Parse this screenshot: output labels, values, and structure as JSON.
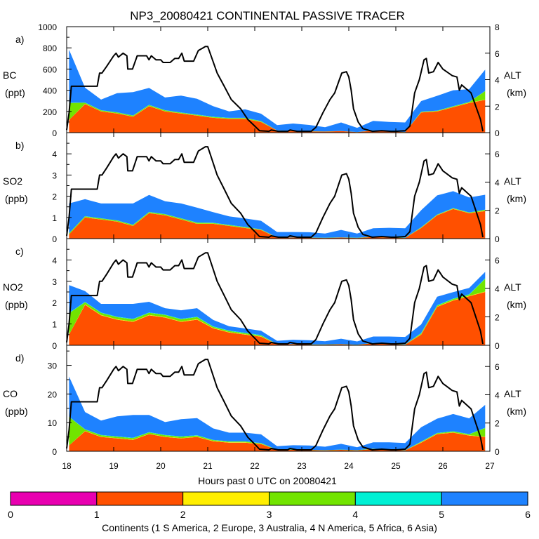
{
  "chart_data": {
    "type": "area",
    "title": "NP3_20080421 CONTINENTAL PASSIVE TRACER",
    "xlabel": "Hours past 0 UTC on 20080421",
    "xlim": [
      18,
      27
    ],
    "xticks": [
      18,
      19,
      20,
      21,
      22,
      23,
      24,
      25,
      26,
      27
    ],
    "altitude_axis": {
      "label": "ALT",
      "unit": "(km)"
    },
    "altitude_km": {
      "x": [
        18.0,
        18.05,
        18.1,
        18.25,
        18.3,
        18.65,
        18.7,
        18.75,
        18.85,
        19.0,
        19.05,
        19.1,
        19.2,
        19.28,
        19.3,
        19.4,
        19.5,
        19.7,
        19.75,
        19.8,
        19.9,
        20.0,
        20.05,
        20.1,
        20.2,
        20.3,
        20.38,
        20.45,
        20.5,
        20.6,
        20.7,
        20.8,
        20.9,
        20.95,
        21.0,
        21.05,
        21.2,
        21.35,
        21.5,
        21.7,
        21.85,
        22.0,
        22.1,
        22.3,
        22.35,
        22.5,
        22.7,
        22.75,
        22.9,
        23.0,
        23.2,
        23.3,
        23.45,
        23.6,
        23.7,
        23.8,
        23.85,
        23.95,
        24.0,
        24.05,
        24.1,
        24.2,
        24.3,
        24.5,
        24.7,
        24.9,
        25.0,
        25.2,
        25.3,
        25.4,
        25.5,
        25.6,
        25.65,
        25.7,
        25.8,
        25.9,
        26.0,
        26.2,
        26.3,
        26.35,
        26.4,
        26.6,
        26.8,
        26.85
      ],
      "y": [
        0.2,
        1.5,
        3.5,
        3.5,
        3.5,
        3.5,
        4.5,
        4.5,
        5.0,
        5.8,
        6.0,
        5.7,
        6.0,
        5.8,
        4.8,
        4.8,
        5.8,
        5.8,
        5.5,
        5.8,
        5.5,
        5.5,
        5.3,
        5.3,
        5.3,
        5.6,
        5.6,
        6.0,
        5.4,
        5.4,
        5.4,
        6.2,
        6.4,
        6.5,
        6.5,
        6.0,
        4.5,
        3.5,
        2.5,
        1.8,
        1.0,
        0.5,
        0.15,
        0.1,
        0.2,
        0.1,
        0.1,
        0.2,
        0.1,
        0.1,
        0.1,
        0.4,
        1.5,
        2.5,
        3.0,
        4.0,
        4.5,
        4.6,
        4.2,
        3.2,
        1.8,
        0.8,
        0.3,
        0.1,
        0.15,
        0.1,
        0.1,
        0.15,
        0.5,
        3.0,
        4.0,
        5.5,
        5.6,
        4.5,
        4.6,
        5.3,
        4.8,
        4.3,
        4.2,
        3.2,
        3.6,
        3.0,
        1.0,
        0.1
      ]
    },
    "legend": {
      "label": "Continents (1 S America, 2 Europe, 3 Australia, 4 N America, 5 Africa, 6 Asia)",
      "tick_labels": [
        "0",
        "1",
        "2",
        "3",
        "4",
        "5",
        "6"
      ],
      "colors": [
        "#e800b0",
        "#ff5000",
        "#ffee00",
        "#72e400",
        "#00f0d4",
        "#1e82ff"
      ]
    },
    "panels": [
      {
        "letter": "a)",
        "species": "BC",
        "unit": "(ppt)",
        "ylim": [
          0,
          1000
        ],
        "yticks": [
          "0",
          "200",
          "400",
          "600",
          "800",
          "1000"
        ],
        "altlim": [
          0,
          8
        ],
        "altticks": [
          "0",
          "2",
          "4",
          "6",
          "8"
        ],
        "series": [
          {
            "name": "S America",
            "color": "#e800b0",
            "values": [
              0,
              0,
              0,
              0,
              0,
              0,
              0,
              0,
              0,
              0,
              0,
              0,
              0,
              0,
              0,
              0,
              0,
              0,
              0,
              0,
              0,
              0,
              0,
              0,
              0,
              0,
              0
            ]
          },
          {
            "name": "Europe",
            "color": "#ff5000",
            "values": [
              120,
              270,
              200,
              180,
              150,
              250,
              200,
              180,
              160,
              140,
              130,
              130,
              100,
              20,
              15,
              12,
              10,
              15,
              5,
              20,
              10,
              5,
              190,
              200,
              240,
              280,
              310
            ]
          },
          {
            "name": "Australia",
            "color": "#ffee00",
            "values": [
              0,
              2,
              2,
              2,
              2,
              2,
              2,
              2,
              2,
              2,
              2,
              2,
              2,
              0,
              0,
              0,
              0,
              0,
              0,
              0,
              0,
              0,
              2,
              2,
              2,
              2,
              2
            ]
          },
          {
            "name": "N America",
            "color": "#72e400",
            "values": [
              160,
              10,
              8,
              8,
              8,
              8,
              8,
              6,
              6,
              6,
              6,
              6,
              5,
              1,
              1,
              1,
              1,
              1,
              1,
              1,
              1,
              1,
              4,
              4,
              6,
              6,
              80
            ]
          },
          {
            "name": "Africa",
            "color": "#00f0d4",
            "values": [
              2,
              2,
              2,
              2,
              2,
              2,
              2,
              2,
              2,
              2,
              2,
              2,
              2,
              0,
              0,
              0,
              0,
              0,
              0,
              0,
              0,
              0,
              2,
              2,
              2,
              2,
              2
            ]
          },
          {
            "name": "Asia",
            "color": "#1e82ff",
            "values": [
              500,
              140,
              100,
              180,
              220,
              160,
              120,
              160,
              150,
              100,
              60,
              80,
              70,
              50,
              70,
              60,
              40,
              80,
              40,
              90,
              90,
              90,
              100,
              140,
              150,
              120,
              200
            ]
          }
        ]
      },
      {
        "letter": "b)",
        "species": "SO2",
        "unit": "(ppb)",
        "ylim": [
          0,
          5
        ],
        "yticks": [
          "0",
          "1",
          "2",
          "3",
          "4"
        ],
        "altlim": [
          0,
          7.5
        ],
        "altticks": [
          "0",
          "2",
          "4",
          "6"
        ],
        "series": [
          {
            "name": "S America",
            "color": "#e800b0",
            "values": [
              0,
              0,
              0,
              0,
              0,
              0,
              0,
              0,
              0,
              0,
              0,
              0,
              0,
              0,
              0,
              0,
              0,
              0,
              0,
              0,
              0,
              0,
              0,
              0,
              0,
              0,
              0
            ]
          },
          {
            "name": "Europe",
            "color": "#ff5000",
            "values": [
              0.2,
              1.0,
              0.9,
              0.8,
              0.6,
              1.2,
              1.1,
              0.9,
              0.7,
              0.7,
              0.6,
              0.5,
              0.4,
              0.05,
              0.05,
              0.04,
              0.03,
              0.05,
              0.03,
              0.08,
              0.05,
              0.03,
              0.5,
              1.1,
              1.4,
              1.2,
              1.3
            ]
          },
          {
            "name": "Australia",
            "color": "#ffee00",
            "values": [
              0,
              0.01,
              0.01,
              0.01,
              0.01,
              0.01,
              0.01,
              0.01,
              0.01,
              0.01,
              0.01,
              0.01,
              0.01,
              0,
              0,
              0,
              0,
              0,
              0,
              0,
              0,
              0,
              0.01,
              0.01,
              0.01,
              0.01,
              0.01
            ]
          },
          {
            "name": "N America",
            "color": "#72e400",
            "values": [
              0.05,
              0.04,
              0.04,
              0.04,
              0.04,
              0.04,
              0.04,
              0.04,
              0.04,
              0.03,
              0.03,
              0.03,
              0.02,
              0.01,
              0.01,
              0.01,
              0.01,
              0.01,
              0.01,
              0.01,
              0.01,
              0.01,
              0.02,
              0.02,
              0.02,
              0.02,
              0.05
            ]
          },
          {
            "name": "Africa",
            "color": "#00f0d4",
            "values": [
              0.01,
              0.01,
              0.01,
              0.01,
              0.01,
              0.01,
              0.01,
              0.01,
              0.01,
              0.01,
              0.01,
              0.01,
              0.01,
              0,
              0,
              0,
              0,
              0,
              0,
              0,
              0,
              0,
              0.01,
              0.01,
              0.01,
              0.01,
              0.01
            ]
          },
          {
            "name": "Asia",
            "color": "#1e82ff",
            "values": [
              1.4,
              0.8,
              0.7,
              0.8,
              1.0,
              0.8,
              0.6,
              0.7,
              0.7,
              0.5,
              0.4,
              0.4,
              0.4,
              0.25,
              0.25,
              0.25,
              0.2,
              0.35,
              0.2,
              0.4,
              0.45,
              0.45,
              0.8,
              0.9,
              0.8,
              0.7,
              0.7
            ]
          }
        ]
      },
      {
        "letter": "c)",
        "species": "NO2",
        "unit": "(ppb)",
        "ylim": [
          0,
          5
        ],
        "yticks": [
          "0",
          "1",
          "2",
          "3",
          "4"
        ],
        "altlim": [
          0,
          7.5
        ],
        "altticks": [
          "0",
          "2",
          "4",
          "6"
        ],
        "series": [
          {
            "name": "S America",
            "color": "#e800b0",
            "values": [
              0,
              0,
              0,
              0,
              0,
              0,
              0,
              0,
              0,
              0,
              0,
              0,
              0,
              0,
              0,
              0,
              0,
              0,
              0,
              0,
              0,
              0,
              0,
              0,
              0,
              0,
              0
            ]
          },
          {
            "name": "Europe",
            "color": "#ff5000",
            "values": [
              0.5,
              1.9,
              1.4,
              1.2,
              1.1,
              1.4,
              1.3,
              1.1,
              1.2,
              0.8,
              0.6,
              0.5,
              0.4,
              0.05,
              0.05,
              0.03,
              0.03,
              0.05,
              0.02,
              0.1,
              0.05,
              0.03,
              0.5,
              1.8,
              2.1,
              2.3,
              2.5
            ]
          },
          {
            "name": "Australia",
            "color": "#ffee00",
            "values": [
              0,
              0.02,
              0.02,
              0.02,
              0.02,
              0.02,
              0.02,
              0.02,
              0.02,
              0.02,
              0.02,
              0.02,
              0.02,
              0,
              0,
              0,
              0,
              0,
              0,
              0,
              0,
              0,
              0.02,
              0.02,
              0.02,
              0.02,
              0.02
            ]
          },
          {
            "name": "N America",
            "color": "#72e400",
            "values": [
              1.0,
              0.1,
              0.1,
              0.1,
              0.1,
              0.1,
              0.1,
              0.1,
              0.1,
              0.05,
              0.05,
              0.05,
              0.04,
              0.01,
              0.01,
              0.01,
              0.01,
              0.01,
              0.01,
              0.01,
              0.01,
              0.01,
              0.04,
              0.04,
              0.05,
              0.05,
              0.6
            ]
          },
          {
            "name": "Africa",
            "color": "#00f0d4",
            "values": [
              0.02,
              0.02,
              0.02,
              0.02,
              0.02,
              0.02,
              0.02,
              0.02,
              0.02,
              0.02,
              0.02,
              0.02,
              0.02,
              0,
              0,
              0,
              0,
              0,
              0,
              0,
              0,
              0,
              0.02,
              0.02,
              0.02,
              0.02,
              0.02
            ]
          },
          {
            "name": "Asia",
            "color": "#1e82ff",
            "values": [
              1.3,
              0.5,
              0.4,
              0.6,
              0.7,
              0.5,
              0.3,
              0.4,
              0.4,
              0.3,
              0.2,
              0.2,
              0.2,
              0.15,
              0.2,
              0.2,
              0.15,
              0.25,
              0.15,
              0.3,
              0.35,
              0.35,
              0.4,
              0.4,
              0.3,
              0.3,
              0.3
            ]
          }
        ]
      },
      {
        "letter": "d)",
        "species": "CO",
        "unit": "(ppb)",
        "ylim": [
          0,
          37
        ],
        "yticks": [
          "0",
          "10",
          "20",
          "30"
        ],
        "altlim": [
          0,
          7.5
        ],
        "altticks": [
          "0",
          "2",
          "4",
          "6"
        ],
        "series": [
          {
            "name": "S America",
            "color": "#e800b0",
            "values": [
              0,
              0,
              0,
              0,
              0,
              0,
              0,
              0,
              0,
              0,
              0,
              0,
              0,
              0,
              0,
              0,
              0,
              0,
              0,
              0,
              0,
              0,
              0,
              0,
              0,
              0,
              0
            ]
          },
          {
            "name": "Europe",
            "color": "#ff5000",
            "values": [
              2,
              7,
              5,
              4.5,
              4,
              6,
              5,
              4.5,
              5,
              3.5,
              3,
              3,
              2.5,
              0.5,
              0.5,
              0.4,
              0.3,
              0.5,
              0.3,
              0.8,
              0.5,
              0.3,
              3,
              6,
              6.5,
              5.5,
              5
            ]
          },
          {
            "name": "Australia",
            "color": "#ffee00",
            "values": [
              0,
              0.1,
              0.1,
              0.1,
              0.1,
              0.1,
              0.1,
              0.1,
              0.1,
              0.1,
              0.1,
              0.1,
              0.1,
              0,
              0,
              0,
              0,
              0,
              0,
              0,
              0,
              0,
              0.1,
              0.1,
              0.1,
              0.1,
              0.1
            ]
          },
          {
            "name": "N America",
            "color": "#72e400",
            "values": [
              10,
              0.5,
              0.5,
              0.5,
              0.5,
              0.5,
              0.5,
              0.5,
              0.4,
              0.3,
              0.3,
              0.3,
              0.2,
              0.1,
              0.1,
              0.1,
              0.1,
              0.1,
              0.1,
              0.1,
              0.1,
              0.1,
              0.2,
              0.2,
              0.3,
              0.3,
              3
            ]
          },
          {
            "name": "Africa",
            "color": "#00f0d4",
            "values": [
              0.1,
              0.1,
              0.1,
              0.1,
              0.1,
              0.1,
              0.1,
              0.1,
              0.1,
              0.1,
              0.1,
              0.1,
              0.1,
              0,
              0,
              0,
              0,
              0,
              0,
              0,
              0,
              0,
              0.1,
              0.1,
              0.1,
              0.1,
              0.1
            ]
          },
          {
            "name": "Asia",
            "color": "#1e82ff",
            "values": [
              14,
              6,
              5,
              7,
              8,
              6,
              4.5,
              6,
              6,
              4,
              3,
              3,
              3,
              1.2,
              1.5,
              1.5,
              1.2,
              2,
              1,
              2.2,
              2.5,
              2.5,
              5,
              5,
              6,
              5.5,
              8
            ]
          }
        ]
      }
    ]
  }
}
